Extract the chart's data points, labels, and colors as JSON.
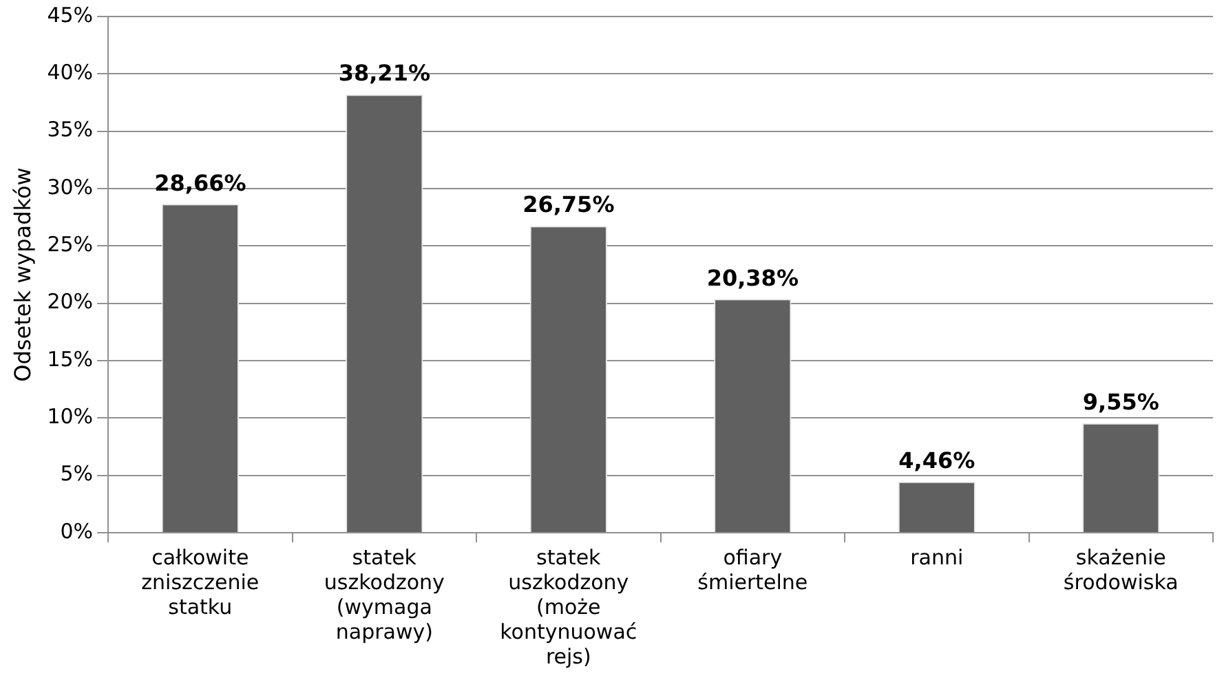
{
  "chart_data": {
    "type": "bar",
    "ylabel": "Odsetek wypadków",
    "categories": [
      "całkowite zniszczenie statku",
      "statek uszkodzony (wymaga naprawy)",
      "statek uszkodzony (może kontynuować rejs)",
      "ofiary śmiertelne",
      "ranni",
      "skażenie środowiska"
    ],
    "values": [
      28.66,
      38.21,
      26.75,
      20.38,
      4.46,
      9.55
    ],
    "value_labels": [
      "28,66%",
      "38,21%",
      "26,75%",
      "20,38%",
      "4,46%",
      "9,55%"
    ],
    "color": "#606060",
    "ylim": [
      0,
      45
    ],
    "yticks": [
      {
        "value": 0,
        "label": "0%"
      },
      {
        "value": 5,
        "label": "5%"
      },
      {
        "value": 10,
        "label": "10%"
      },
      {
        "value": 15,
        "label": "15%"
      },
      {
        "value": 20,
        "label": "20%"
      },
      {
        "value": 25,
        "label": "25%"
      },
      {
        "value": 30,
        "label": "30%"
      },
      {
        "value": 35,
        "label": "35%"
      },
      {
        "value": 40,
        "label": "40%"
      },
      {
        "value": 45,
        "label": "45%"
      }
    ],
    "grid": "y",
    "legend": false
  }
}
